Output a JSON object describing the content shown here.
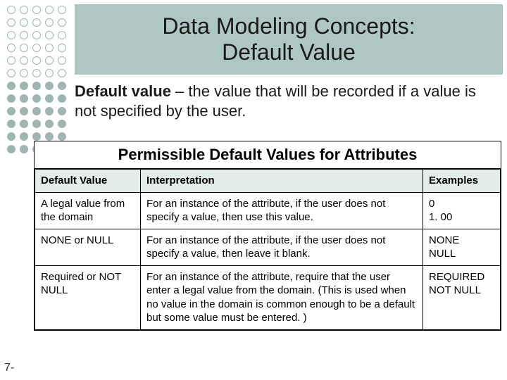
{
  "title": "Data Modeling Concepts:\nDefault Value",
  "definition_term": "Default value",
  "definition_rest": " – the value that will be recorded if a value is not specified by the user.",
  "table_title": "Permissible Default Values for Attributes",
  "columns": [
    "Default Value",
    "Interpretation",
    "Examples"
  ],
  "rows": [
    {
      "default": "A legal value from the domain",
      "interp": "For an instance of the attribute, if the user does not specify a value, then use this value.",
      "examples": "0\n1. 00"
    },
    {
      "default": "NONE or NULL",
      "interp": "For an instance of the attribute, if the user does not specify a value, then leave it blank.",
      "examples": "NONE\nNULL"
    },
    {
      "default": "Required or NOT NULL",
      "interp": "For an instance of the attribute, require that the user enter a legal value from the domain. (This is used when no value in the domain is common enough to be a default but some value must be entered. )",
      "examples": "REQUIRED\nNOT NULL"
    }
  ],
  "page_number": "7-",
  "colors": {
    "band": "#aec7c3",
    "header_row": "#e2ecea",
    "dot": "#9db6b2",
    "border": "#000000",
    "text": "#1a1a1a"
  },
  "fonts": {
    "title_size": 32,
    "body_size": 22,
    "table_size": 15
  },
  "dot_grid": {
    "cols": 5,
    "rows": 12,
    "filled_rows_from": 6
  }
}
